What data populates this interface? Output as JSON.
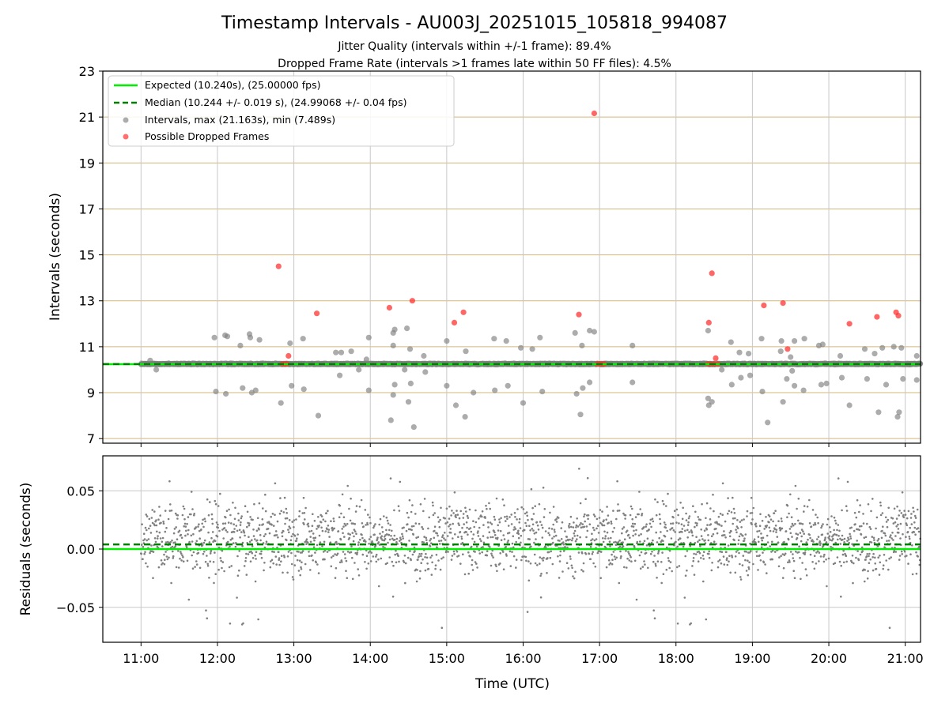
{
  "chart_data": {
    "type": "scatter",
    "title": "Timestamp Intervals - AU003J_20251015_105818_994087",
    "subtitle_1": "Jitter Quality (intervals within +/-1 frame): 89.4%",
    "subtitle_2": "Dropped Frame Rate (intervals >1 frames late within 50 FF files): 4.5%",
    "xlabel": "Time (UTC)",
    "x_ticks": [
      "11:00",
      "12:00",
      "13:00",
      "14:00",
      "15:00",
      "16:00",
      "17:00",
      "18:00",
      "19:00",
      "20:00",
      "21:00"
    ],
    "xlim_hours": [
      10.5,
      21.2
    ],
    "top_panel": {
      "ylabel": "Intervals (seconds)",
      "ylim": [
        6.8,
        23
      ],
      "yticks": [
        "7",
        "9",
        "11",
        "13",
        "15",
        "17",
        "19",
        "21",
        "23"
      ],
      "legend_position": "top-left",
      "legend": {
        "expected": "Expected (10.240s), (25.00000 fps)",
        "median": "Median (10.244 +/- 0.019 s), (24.99068 +/- 0.04 fps)",
        "intervals": "Intervals, max (21.163s), min (7.489s)",
        "dropped": "Possible Dropped Frames"
      },
      "expected_value": 10.24,
      "median_value": 10.244,
      "dropped_frames": [
        {
          "t": 12.8,
          "v": 14.5
        },
        {
          "t": 12.93,
          "v": 10.6
        },
        {
          "t": 13.3,
          "v": 12.45
        },
        {
          "t": 14.25,
          "v": 12.7
        },
        {
          "t": 14.55,
          "v": 13.0
        },
        {
          "t": 15.1,
          "v": 12.05
        },
        {
          "t": 15.22,
          "v": 12.5
        },
        {
          "t": 16.73,
          "v": 12.4
        },
        {
          "t": 16.93,
          "v": 21.16
        },
        {
          "t": 18.43,
          "v": 12.05
        },
        {
          "t": 18.47,
          "v": 14.2
        },
        {
          "t": 18.52,
          "v": 10.5
        },
        {
          "t": 19.15,
          "v": 12.8
        },
        {
          "t": 19.4,
          "v": 12.9
        },
        {
          "t": 19.46,
          "v": 10.9
        },
        {
          "t": 20.27,
          "v": 12.0
        },
        {
          "t": 20.63,
          "v": 12.3
        },
        {
          "t": 20.88,
          "v": 12.5
        },
        {
          "t": 20.91,
          "v": 12.35
        },
        {
          "t": 12.85,
          "v": 10.25
        },
        {
          "t": 12.88,
          "v": 10.25
        },
        {
          "t": 12.91,
          "v": 10.25
        },
        {
          "t": 16.97,
          "v": 10.25
        },
        {
          "t": 17.0,
          "v": 10.25
        },
        {
          "t": 17.03,
          "v": 10.25
        },
        {
          "t": 17.06,
          "v": 10.25
        },
        {
          "t": 18.42,
          "v": 10.25
        },
        {
          "t": 18.46,
          "v": 10.25
        },
        {
          "t": 18.5,
          "v": 10.25
        },
        {
          "t": 18.55,
          "v": 10.25
        }
      ],
      "outlier_intervals": [
        {
          "t": 11.96,
          "v": 11.4
        },
        {
          "t": 11.98,
          "v": 9.05
        },
        {
          "t": 12.1,
          "v": 11.5
        },
        {
          "t": 12.13,
          "v": 11.45
        },
        {
          "t": 12.11,
          "v": 8.95
        },
        {
          "t": 12.3,
          "v": 11.05
        },
        {
          "t": 12.33,
          "v": 9.2
        },
        {
          "t": 12.42,
          "v": 11.55
        },
        {
          "t": 12.45,
          "v": 9.0
        },
        {
          "t": 12.43,
          "v": 11.4
        },
        {
          "t": 12.55,
          "v": 11.3
        },
        {
          "t": 12.5,
          "v": 9.1
        },
        {
          "t": 12.83,
          "v": 8.55
        },
        {
          "t": 12.95,
          "v": 11.15
        },
        {
          "t": 12.97,
          "v": 9.3
        },
        {
          "t": 13.12,
          "v": 11.35
        },
        {
          "t": 13.13,
          "v": 9.15
        },
        {
          "t": 13.32,
          "v": 8.0
        },
        {
          "t": 13.55,
          "v": 10.75
        },
        {
          "t": 13.62,
          "v": 10.75
        },
        {
          "t": 13.75,
          "v": 10.8
        },
        {
          "t": 13.6,
          "v": 9.75
        },
        {
          "t": 13.98,
          "v": 11.4
        },
        {
          "t": 13.98,
          "v": 9.1
        },
        {
          "t": 14.27,
          "v": 7.8
        },
        {
          "t": 14.3,
          "v": 11.6
        },
        {
          "t": 14.32,
          "v": 11.75
        },
        {
          "t": 14.3,
          "v": 11.05
        },
        {
          "t": 14.32,
          "v": 9.35
        },
        {
          "t": 14.3,
          "v": 8.9
        },
        {
          "t": 14.48,
          "v": 11.8
        },
        {
          "t": 14.52,
          "v": 10.9
        },
        {
          "t": 14.5,
          "v": 8.6
        },
        {
          "t": 14.53,
          "v": 9.4
        },
        {
          "t": 14.57,
          "v": 7.5
        },
        {
          "t": 14.7,
          "v": 10.6
        },
        {
          "t": 14.72,
          "v": 9.9
        },
        {
          "t": 15.0,
          "v": 11.25
        },
        {
          "t": 15.0,
          "v": 9.3
        },
        {
          "t": 15.12,
          "v": 8.45
        },
        {
          "t": 15.25,
          "v": 10.8
        },
        {
          "t": 15.24,
          "v": 7.95
        },
        {
          "t": 15.35,
          "v": 9.0
        },
        {
          "t": 15.62,
          "v": 11.35
        },
        {
          "t": 15.63,
          "v": 9.1
        },
        {
          "t": 15.78,
          "v": 11.25
        },
        {
          "t": 15.8,
          "v": 9.3
        },
        {
          "t": 15.97,
          "v": 10.95
        },
        {
          "t": 16.0,
          "v": 8.55
        },
        {
          "t": 16.12,
          "v": 10.9
        },
        {
          "t": 16.22,
          "v": 11.4
        },
        {
          "t": 16.25,
          "v": 9.05
        },
        {
          "t": 16.68,
          "v": 11.6
        },
        {
          "t": 16.7,
          "v": 8.95
        },
        {
          "t": 16.77,
          "v": 11.05
        },
        {
          "t": 16.78,
          "v": 9.2
        },
        {
          "t": 16.75,
          "v": 8.05
        },
        {
          "t": 16.87,
          "v": 11.7
        },
        {
          "t": 16.93,
          "v": 11.65
        },
        {
          "t": 16.87,
          "v": 9.45
        },
        {
          "t": 17.43,
          "v": 11.05
        },
        {
          "t": 17.43,
          "v": 9.45
        },
        {
          "t": 18.42,
          "v": 11.7
        },
        {
          "t": 18.42,
          "v": 8.75
        },
        {
          "t": 18.43,
          "v": 8.45
        },
        {
          "t": 18.47,
          "v": 8.6
        },
        {
          "t": 18.6,
          "v": 10.0
        },
        {
          "t": 18.72,
          "v": 11.2
        },
        {
          "t": 18.73,
          "v": 9.35
        },
        {
          "t": 18.83,
          "v": 10.75
        },
        {
          "t": 18.85,
          "v": 9.65
        },
        {
          "t": 18.95,
          "v": 10.7
        },
        {
          "t": 18.97,
          "v": 9.75
        },
        {
          "t": 19.12,
          "v": 11.35
        },
        {
          "t": 19.13,
          "v": 9.05
        },
        {
          "t": 19.2,
          "v": 7.7
        },
        {
          "t": 19.38,
          "v": 11.25
        },
        {
          "t": 19.37,
          "v": 10.8
        },
        {
          "t": 19.4,
          "v": 8.6
        },
        {
          "t": 19.45,
          "v": 9.6
        },
        {
          "t": 19.5,
          "v": 10.55
        },
        {
          "t": 19.52,
          "v": 9.95
        },
        {
          "t": 19.55,
          "v": 11.25
        },
        {
          "t": 19.55,
          "v": 9.3
        },
        {
          "t": 19.68,
          "v": 11.35
        },
        {
          "t": 19.67,
          "v": 9.1
        },
        {
          "t": 19.87,
          "v": 11.05
        },
        {
          "t": 19.9,
          "v": 9.35
        },
        {
          "t": 19.92,
          "v": 11.1
        },
        {
          "t": 19.97,
          "v": 9.4
        },
        {
          "t": 20.15,
          "v": 10.6
        },
        {
          "t": 20.17,
          "v": 9.65
        },
        {
          "t": 20.27,
          "v": 8.45
        },
        {
          "t": 20.47,
          "v": 10.9
        },
        {
          "t": 20.5,
          "v": 9.6
        },
        {
          "t": 20.6,
          "v": 10.7
        },
        {
          "t": 20.65,
          "v": 8.15
        },
        {
          "t": 20.7,
          "v": 10.95
        },
        {
          "t": 20.75,
          "v": 9.35
        },
        {
          "t": 20.85,
          "v": 11.0
        },
        {
          "t": 20.9,
          "v": 7.95
        },
        {
          "t": 20.92,
          "v": 8.15
        },
        {
          "t": 20.95,
          "v": 10.95
        },
        {
          "t": 20.97,
          "v": 9.6
        },
        {
          "t": 21.15,
          "v": 10.6
        },
        {
          "t": 21.15,
          "v": 9.55
        },
        {
          "t": 11.12,
          "v": 10.4
        },
        {
          "t": 11.2,
          "v": 10.0
        },
        {
          "t": 13.85,
          "v": 10.0
        },
        {
          "t": 13.95,
          "v": 10.45
        },
        {
          "t": 14.45,
          "v": 10.0
        }
      ]
    },
    "bottom_panel": {
      "ylabel": "Residuals (seconds)",
      "ylim": [
        -0.08,
        0.08
      ],
      "yticks": [
        "0.05",
        "0.00",
        "−0.05"
      ],
      "expected_residual": 0.0,
      "median_residual": 0.004,
      "residual_time_range": [
        11.0,
        21.2
      ],
      "residual_band_upper": 0.02,
      "residual_band_lower": 0.0,
      "residual_spread": 0.035
    }
  },
  "colors": {
    "expected": "#00ee00",
    "median": "#008000",
    "interval_point": "#808080",
    "dropped_point": "#ff3333",
    "hgrid": "#d2b87a",
    "vgrid": "#c8c8c8",
    "frame": "#000000"
  }
}
